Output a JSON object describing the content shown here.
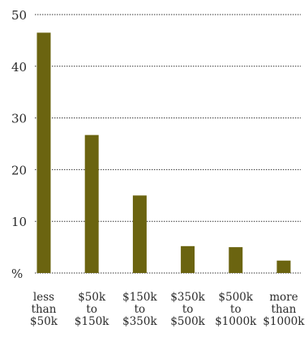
{
  "chart_data": {
    "type": "bar",
    "title": "",
    "xlabel": "",
    "ylabel": "",
    "unit_label": "%",
    "ylim": [
      0,
      50
    ],
    "yticks": [
      10,
      20,
      30,
      40,
      50
    ],
    "grid": true,
    "categories": [
      [
        "less",
        "than",
        "$50k"
      ],
      [
        "$50k",
        "to",
        "$150k"
      ],
      [
        "$150k",
        "to",
        "$350k"
      ],
      [
        "$350k",
        "to",
        "$500k"
      ],
      [
        "$500k",
        "to",
        "$1000k"
      ],
      [
        "more",
        "than",
        "$1000k"
      ]
    ],
    "values": [
      46.5,
      26.7,
      15.0,
      5.2,
      5.0,
      2.4
    ],
    "colors": {
      "bar": "#6b6410",
      "grid": "#333333",
      "text": "#2b2b2b"
    }
  }
}
